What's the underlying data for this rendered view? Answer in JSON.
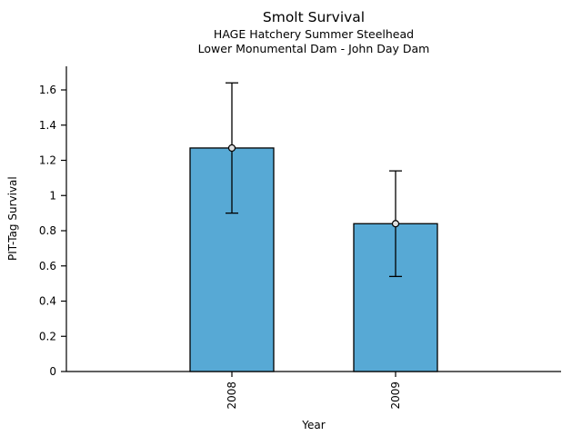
{
  "chart_data": {
    "type": "bar",
    "title": "Smolt Survival",
    "subtitles": [
      "HAGE Hatchery Summer Steelhead",
      "Lower Monumental Dam - John Day Dam"
    ],
    "xlabel": "Year",
    "ylabel": "PIT-Tag Survival",
    "categories": [
      "2008",
      "2009"
    ],
    "values": [
      1.27,
      0.84
    ],
    "error_low": [
      0.9,
      0.54
    ],
    "error_high": [
      1.64,
      1.14
    ],
    "ylim": [
      0,
      1.74
    ],
    "yticks": [
      0,
      0.2,
      0.4,
      0.6,
      0.8,
      1.0,
      1.2,
      1.4,
      1.6
    ],
    "ytick_labels": [
      "0",
      "0.2",
      "0.4",
      "0.6",
      "0.8",
      "1",
      "1.2",
      "1.4",
      "1.6"
    ],
    "grid": false,
    "legend": null,
    "colors": {
      "bar_fill": "#57A9D5",
      "bar_edge": "#000000",
      "error_bar": "#000000",
      "marker_edge": "#000000",
      "marker_fill": "#E0E0E0",
      "axis": "#000000",
      "text": "#000000",
      "background": "#FFFFFF"
    }
  }
}
